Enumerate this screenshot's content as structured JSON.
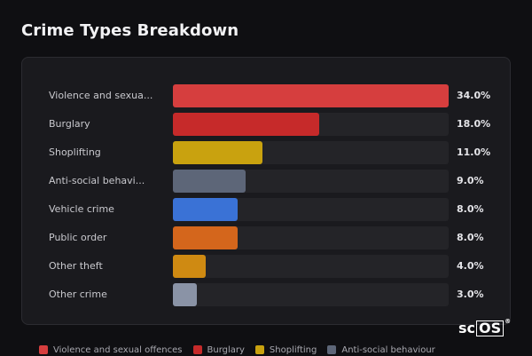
{
  "title": "Crime Types Breakdown",
  "brand": {
    "prefix": "sc",
    "boxed": "OS",
    "mark": "®"
  },
  "chart_data": {
    "type": "bar",
    "orientation": "horizontal",
    "title": "Crime Types Breakdown",
    "categories": [
      "Violence and sexua...",
      "Burglary",
      "Shoplifting",
      "Anti-social behavi...",
      "Vehicle crime",
      "Public order",
      "Other theft",
      "Other crime"
    ],
    "values": [
      34.0,
      18.0,
      11.0,
      9.0,
      8.0,
      8.0,
      4.0,
      3.0
    ],
    "value_labels": [
      "34.0%",
      "18.0%",
      "11.0%",
      "9.0%",
      "8.0%",
      "8.0%",
      "4.0%",
      "3.0%"
    ],
    "colors": [
      "#d63e3e",
      "#c62a2a",
      "#c9a20f",
      "#5d6678",
      "#3a72d6",
      "#d4661c",
      "#cf8a12",
      "#8a93a6"
    ],
    "xlim": [
      0,
      34
    ],
    "grid": false,
    "legend": {
      "placement": "bottom",
      "entries": [
        {
          "label": "Violence and sexual offences",
          "color": "#d63e3e"
        },
        {
          "label": "Burglary",
          "color": "#c62a2a"
        },
        {
          "label": "Shoplifting",
          "color": "#c9a20f"
        },
        {
          "label": "Anti-social behaviour",
          "color": "#5d6678"
        }
      ]
    }
  }
}
